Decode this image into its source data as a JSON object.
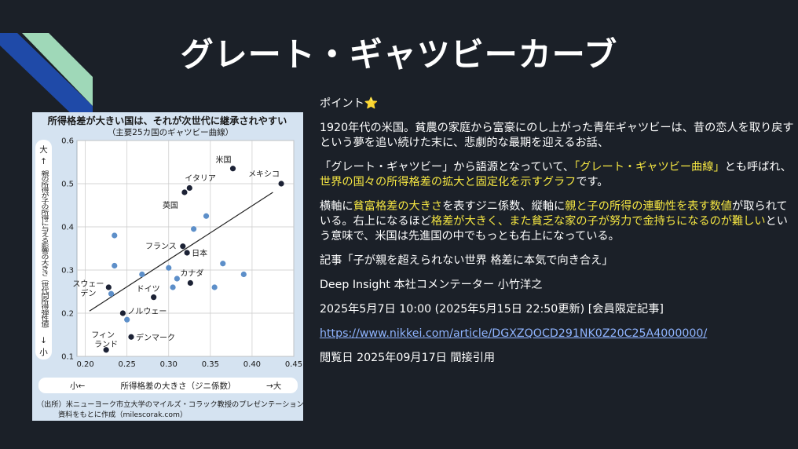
{
  "slide": {
    "title": "グレート・ギャツビーカーブ",
    "accent_colors": {
      "highlight": "#f5e642",
      "link": "#8fb4ff",
      "background": "#1b2028"
    }
  },
  "figure": {
    "heading": "所得格差が大きい国は、それが次世代に継承されやすい",
    "subheading": "（主要25カ国のギャツビー曲線）",
    "y_top": "大",
    "y_label": "親の所得が子の所得に与える影響の大きさ（世代間所得弾性値）",
    "y_bottom": "小",
    "x_left": "小←",
    "x_label": "所得格差の大きさ（ジニ係数）",
    "x_right": "→大",
    "source": "（出所）米ニューヨーク市立大学のマイルズ・コラック教授のプレゼンテーション資料をもとに作成（milescorak.com）"
  },
  "chart_data": {
    "type": "scatter",
    "title": "所得格差が大きい国は、それが次世代に継承されやすい",
    "subtitle": "（主要25カ国のギャツビー曲線）",
    "xlabel": "所得格差の大きさ（ジニ係数）",
    "ylabel": "親の所得が子の所得に与える影響の大きさ（世代間所得弾性値）",
    "xlim": [
      0.19,
      0.45
    ],
    "ylim": [
      0.1,
      0.6
    ],
    "xticks": [
      "0.20",
      "0.25",
      "0.30",
      "0.35",
      "0.40",
      "0.45"
    ],
    "yticks": [
      "0.1",
      "0.2",
      "0.3",
      "0.4",
      "0.5",
      "0.6"
    ],
    "grid": true,
    "labeled_points": [
      {
        "label": "米国",
        "x": 0.377,
        "y": 0.535
      },
      {
        "label": "メキシコ",
        "x": 0.435,
        "y": 0.5
      },
      {
        "label": "イタリア",
        "x": 0.325,
        "y": 0.49
      },
      {
        "label": "英国",
        "x": 0.319,
        "y": 0.48
      },
      {
        "label": "フランス",
        "x": 0.317,
        "y": 0.355
      },
      {
        "label": "日本",
        "x": 0.322,
        "y": 0.34
      },
      {
        "label": "カナダ",
        "x": 0.326,
        "y": 0.27
      },
      {
        "label": "ドイツ",
        "x": 0.282,
        "y": 0.237
      },
      {
        "label": "スウェーデン",
        "x": 0.228,
        "y": 0.26
      },
      {
        "label": "ノルウェー",
        "x": 0.245,
        "y": 0.2
      },
      {
        "label": "デンマーク",
        "x": 0.255,
        "y": 0.145
      },
      {
        "label": "フィンランド",
        "x": 0.225,
        "y": 0.115
      }
    ],
    "other_points": [
      {
        "x": 0.235,
        "y": 0.38
      },
      {
        "x": 0.235,
        "y": 0.31
      },
      {
        "x": 0.231,
        "y": 0.245
      },
      {
        "x": 0.25,
        "y": 0.185
      },
      {
        "x": 0.268,
        "y": 0.29
      },
      {
        "x": 0.3,
        "y": 0.305
      },
      {
        "x": 0.305,
        "y": 0.26
      },
      {
        "x": 0.31,
        "y": 0.28
      },
      {
        "x": 0.33,
        "y": 0.395
      },
      {
        "x": 0.345,
        "y": 0.425
      },
      {
        "x": 0.355,
        "y": 0.26
      },
      {
        "x": 0.365,
        "y": 0.315
      },
      {
        "x": 0.39,
        "y": 0.29
      }
    ],
    "trendline": {
      "x": [
        0.205,
        0.425
      ],
      "y": [
        0.205,
        0.48
      ]
    }
  },
  "content": {
    "point_heading": "ポイント",
    "star": "⭐",
    "para1": "1920年代の米国。貧農の家庭から富豪にのし上がった青年ギャツビーは、昔の恋人を取り戻すという夢を追い続けた末に、悲劇的な最期を迎えるお話、",
    "para2": {
      "a": "「グレート・ギャツビー」から語源となっていて、",
      "b": "「グレート・ギャツビー曲線」",
      "c": "とも呼ばれ、",
      "d": "世界の国々の所得格差の拡大と固定化を示すグラフ",
      "e": "です。"
    },
    "para3": {
      "a": "横軸に",
      "b": "貧富格差の大きさ",
      "c": "を表すジニ係数、縦軸に",
      "d": "親と子の所得の連動性を表す数値",
      "e": "が取られている。右上になるほど",
      "f": "格差が大きく、また貧乏な家の子が努力で金持ちになるのが難しい",
      "g": "という意味で、米国は先進国の中でもっとも右上になっている。"
    },
    "article": "記事「子が親を超えられない世界 格差に本気で向き合え」",
    "author": "Deep Insight 本社コメンテーター 小竹洋之",
    "date": "2025年5月7日 10:00 (2025年5月15日 22:50更新) [会員限定記事]",
    "url": "https://www.nikkei.com/article/DGXZQOCD291NK0Z20C25A4000000/",
    "viewed": "閲覧日 2025年09月17日 間接引用"
  }
}
